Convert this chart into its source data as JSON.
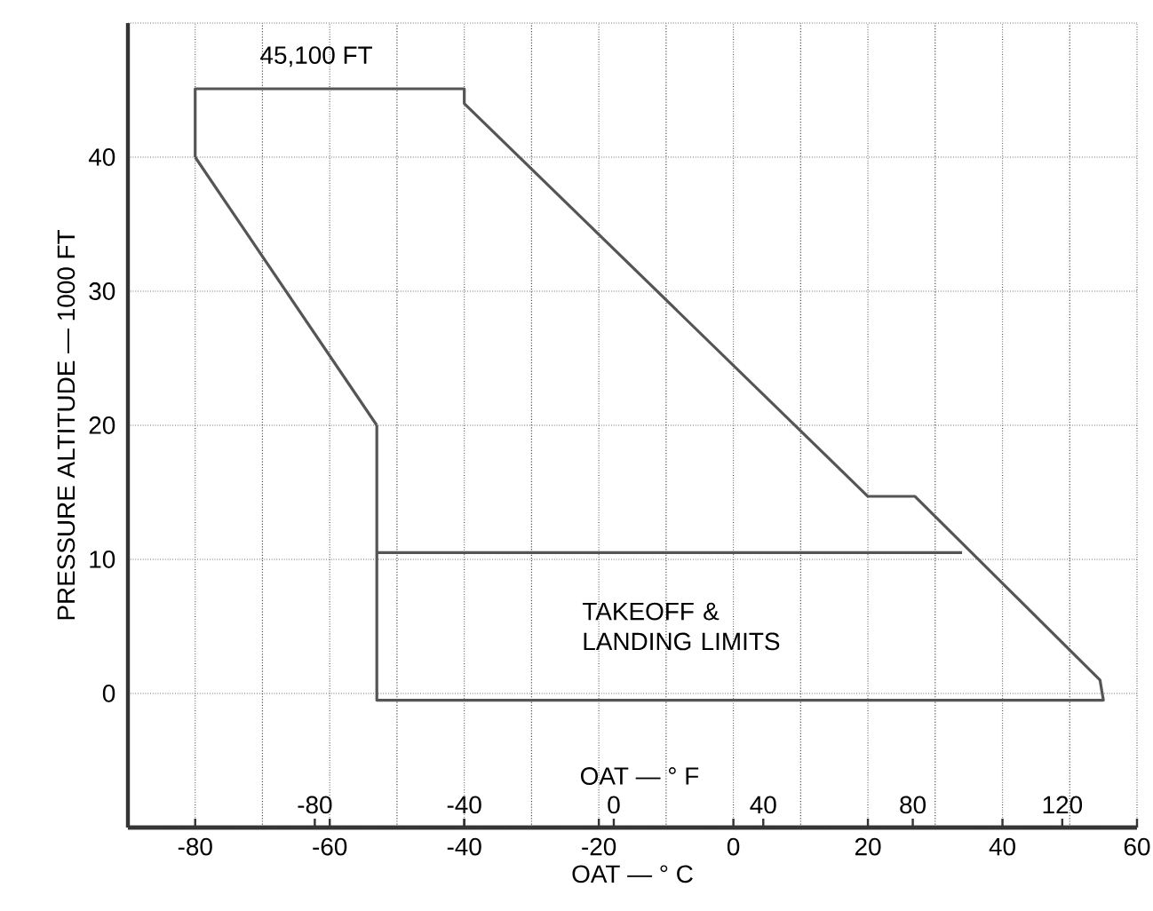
{
  "chart_data": {
    "type": "line",
    "xlabel": "OAT — ° C",
    "ylabel": "PRESSURE ALTITUDE — 1000 FT",
    "x2label": "OAT — ° F",
    "xlim": [
      -90,
      60
    ],
    "xticks": [
      -80,
      -60,
      -40,
      -20,
      0,
      20,
      40,
      60
    ],
    "ylim": [
      -10,
      50
    ],
    "yticks": [
      0,
      10,
      20,
      30,
      40
    ],
    "x2lim": [
      -130,
      140
    ],
    "x2ticks": [
      -80,
      -40,
      0,
      40,
      80,
      120
    ],
    "grid": true,
    "marker": "none",
    "line_style": "solid",
    "series": [
      {
        "color": "#555555",
        "x": [
          -80,
          -80,
          -40,
          -40,
          20,
          27,
          54.5,
          55,
          -53,
          -53
        ],
        "values": [
          40,
          45.1,
          45.1,
          44,
          14.7,
          14.7,
          1,
          -0.5,
          -0.5,
          20
        ]
      },
      {
        "color": "#555555",
        "x": [
          -53,
          -80
        ],
        "values": [
          20,
          40
        ]
      },
      {
        "color": "#555555",
        "x": [
          -53,
          34
        ],
        "values": [
          10.5,
          10.5
        ]
      }
    ],
    "annotations": [
      "45,100 FT",
      "TAKEOFF & LANDING LIMITS"
    ]
  }
}
